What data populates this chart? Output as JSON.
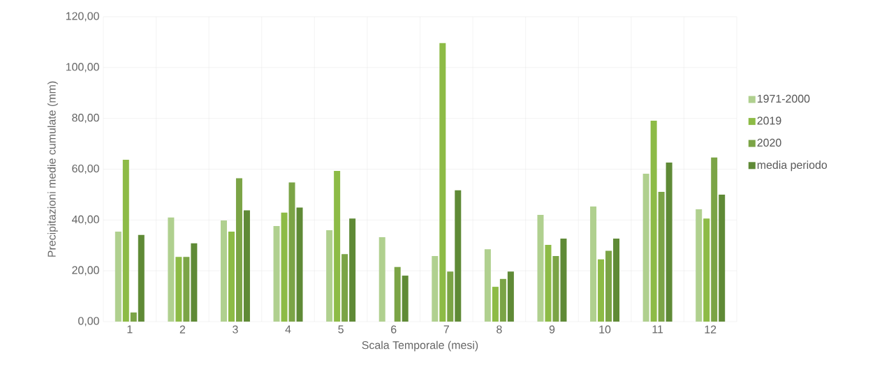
{
  "chart_data": {
    "type": "bar",
    "xlabel": "Scala Temporale (mesi)",
    "ylabel": "Precipitazioni medie cumulate (mm)",
    "categories": [
      "1",
      "2",
      "3",
      "4",
      "5",
      "6",
      "7",
      "8",
      "9",
      "10",
      "11",
      "12"
    ],
    "series": [
      {
        "name": "1971-2000",
        "color": "#b0d08f",
        "values": [
          35.4,
          41.0,
          39.8,
          37.6,
          36.0,
          33.2,
          25.8,
          28.5,
          42.0,
          45.3,
          58.2,
          44.2
        ]
      },
      {
        "name": "2019",
        "color": "#8dbb46",
        "values": [
          63.7,
          25.5,
          35.4,
          42.9,
          59.3,
          0,
          109.6,
          13.7,
          30.2,
          24.5,
          79.1,
          40.6
        ]
      },
      {
        "name": "2020",
        "color": "#7ba446",
        "values": [
          3.6,
          25.5,
          56.4,
          54.8,
          26.6,
          21.5,
          19.7,
          16.8,
          25.8,
          27.9,
          51.1,
          64.6
        ]
      },
      {
        "name": "media periodo",
        "color": "#5f8a36",
        "values": [
          34.1,
          30.8,
          43.8,
          44.9,
          40.6,
          18.1,
          51.7,
          19.7,
          32.7,
          32.7,
          62.6,
          50.0
        ]
      }
    ],
    "ylim": [
      0,
      120
    ],
    "yticks": [
      {
        "value": 0,
        "label": "0,00"
      },
      {
        "value": 20,
        "label": "20,00"
      },
      {
        "value": 40,
        "label": "40,00"
      },
      {
        "value": 60,
        "label": "60,00"
      },
      {
        "value": 80,
        "label": "80,00"
      },
      {
        "value": 100,
        "label": "100,00"
      },
      {
        "value": 120,
        "label": "120,00"
      }
    ],
    "grid": true,
    "legend": "right"
  }
}
